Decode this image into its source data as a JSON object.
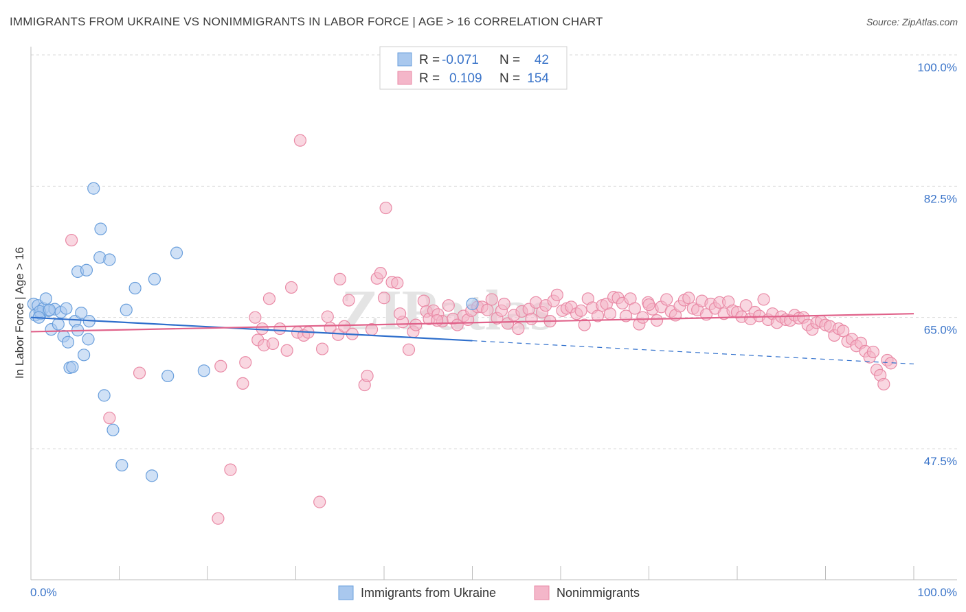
{
  "title": "IMMIGRANTS FROM UKRAINE VS NONIMMIGRANTS IN LABOR FORCE | AGE > 16 CORRELATION CHART",
  "source": "Source: ZipAtlas.com",
  "watermark": "ZIPatlas",
  "colors": {
    "blue_fill": "#a9c8ee",
    "blue_stroke": "#6a9fdc",
    "blue_line": "#2f6fcc",
    "pink_fill": "#f4b6c9",
    "pink_stroke": "#e98aa6",
    "pink_line": "#e0628a",
    "axis_text": "#3a74c9",
    "grid": "#d8d8d8"
  },
  "legend": {
    "r_label": "R =",
    "n_label": "N =",
    "rows": [
      {
        "r": "-0.071",
        "n": "42"
      },
      {
        "r": "0.109",
        "n": "154"
      }
    ]
  },
  "chart_data": {
    "type": "scatter",
    "title": "IMMIGRANTS FROM UKRAINE VS NONIMMIGRANTS IN LABOR FORCE | AGE > 16 CORRELATION CHART",
    "xlabel": "",
    "ylabel": "In Labor Force | Age > 16",
    "xlim": [
      0,
      100
    ],
    "ylim": [
      30,
      102
    ],
    "x_tick_labels": [
      "0.0%",
      "100.0%"
    ],
    "y_ticks": [
      47.5,
      65.0,
      82.5,
      100.0
    ],
    "y_tick_labels": [
      "47.5%",
      "65.0%",
      "82.5%",
      "100.0%"
    ],
    "grid": true,
    "legend_position": "top-center",
    "series": [
      {
        "name": "Immigrants from Ukraine",
        "r": -0.071,
        "n": 42,
        "trend": {
          "x0": 0,
          "y0": 65.0,
          "x1": 50,
          "y1": 61.9,
          "dash_x1": 100,
          "dash_y1": 58.8
        },
        "points": [
          [
            0.3,
            66.8
          ],
          [
            0.5,
            65.3
          ],
          [
            0.8,
            66.6
          ],
          [
            1.1,
            65.5
          ],
          [
            1.4,
            66.2
          ],
          [
            1.7,
            67.5
          ],
          [
            2.0,
            65.9
          ],
          [
            2.3,
            63.4
          ],
          [
            2.7,
            66.1
          ],
          [
            3.1,
            64.1
          ],
          [
            3.4,
            65.7
          ],
          [
            3.7,
            62.5
          ],
          [
            4.0,
            66.2
          ],
          [
            4.2,
            61.7
          ],
          [
            4.4,
            58.3
          ],
          [
            4.7,
            58.4
          ],
          [
            5.0,
            64.5
          ],
          [
            5.3,
            71.1
          ],
          [
            5.3,
            63.3
          ],
          [
            5.7,
            65.6
          ],
          [
            6.0,
            60.0
          ],
          [
            6.3,
            71.3
          ],
          [
            6.5,
            62.1
          ],
          [
            6.6,
            64.5
          ],
          [
            7.1,
            82.2
          ],
          [
            7.8,
            73.0
          ],
          [
            7.9,
            76.8
          ],
          [
            8.3,
            54.6
          ],
          [
            8.9,
            72.7
          ],
          [
            9.3,
            50.0
          ],
          [
            10.3,
            45.3
          ],
          [
            10.8,
            66.0
          ],
          [
            11.8,
            68.9
          ],
          [
            13.7,
            43.9
          ],
          [
            14.0,
            70.1
          ],
          [
            15.5,
            57.2
          ],
          [
            16.5,
            73.6
          ],
          [
            19.6,
            57.9
          ],
          [
            50.0,
            66.8
          ],
          [
            1.0,
            65.8
          ],
          [
            2.1,
            66.0
          ],
          [
            0.9,
            65.0
          ]
        ]
      },
      {
        "name": "Nonimmigrants",
        "r": 0.109,
        "n": 154,
        "trend": {
          "x0": 0,
          "y0": 63.1,
          "x1": 100,
          "y1": 65.5
        },
        "points": [
          [
            4.6,
            75.3
          ],
          [
            8.9,
            51.6
          ],
          [
            12.3,
            57.6
          ],
          [
            21.2,
            38.2
          ],
          [
            21.5,
            58.5
          ],
          [
            22.6,
            44.7
          ],
          [
            24.0,
            56.2
          ],
          [
            24.3,
            59.0
          ],
          [
            25.4,
            65.0
          ],
          [
            25.7,
            62.0
          ],
          [
            26.2,
            63.5
          ],
          [
            26.4,
            61.3
          ],
          [
            27.0,
            67.5
          ],
          [
            27.4,
            61.5
          ],
          [
            28.2,
            63.5
          ],
          [
            29.0,
            60.6
          ],
          [
            29.5,
            69.0
          ],
          [
            30.2,
            63.0
          ],
          [
            30.5,
            88.6
          ],
          [
            30.9,
            62.6
          ],
          [
            31.4,
            63.0
          ],
          [
            32.7,
            40.4
          ],
          [
            33.0,
            60.8
          ],
          [
            33.6,
            65.1
          ],
          [
            33.9,
            63.6
          ],
          [
            34.8,
            62.7
          ],
          [
            35.0,
            70.1
          ],
          [
            35.5,
            63.8
          ],
          [
            36.0,
            67.3
          ],
          [
            36.4,
            62.8
          ],
          [
            37.8,
            56.0
          ],
          [
            38.1,
            57.2
          ],
          [
            38.6,
            63.4
          ],
          [
            39.2,
            70.2
          ],
          [
            39.6,
            70.9
          ],
          [
            40.0,
            67.6
          ],
          [
            40.2,
            79.6
          ],
          [
            40.9,
            69.7
          ],
          [
            41.5,
            69.6
          ],
          [
            42.1,
            64.4
          ],
          [
            42.8,
            60.7
          ],
          [
            43.3,
            63.1
          ],
          [
            43.6,
            64.0
          ],
          [
            44.5,
            67.2
          ],
          [
            44.8,
            65.8
          ],
          [
            45.1,
            64.8
          ],
          [
            45.6,
            65.9
          ],
          [
            46.1,
            65.4
          ],
          [
            46.6,
            64.5
          ],
          [
            47.3,
            66.6
          ],
          [
            47.8,
            64.8
          ],
          [
            48.3,
            64.0
          ],
          [
            49.0,
            65.2
          ],
          [
            49.5,
            64.7
          ],
          [
            49.9,
            65.9
          ],
          [
            50.6,
            66.4
          ],
          [
            51.1,
            66.4
          ],
          [
            51.7,
            66.0
          ],
          [
            52.2,
            67.4
          ],
          [
            52.8,
            64.9
          ],
          [
            53.3,
            65.9
          ],
          [
            54.0,
            64.2
          ],
          [
            54.7,
            65.3
          ],
          [
            55.2,
            63.5
          ],
          [
            55.6,
            65.8
          ],
          [
            56.4,
            66.1
          ],
          [
            56.7,
            64.8
          ],
          [
            57.2,
            67.0
          ],
          [
            57.9,
            65.7
          ],
          [
            58.3,
            66.6
          ],
          [
            58.8,
            64.5
          ],
          [
            59.2,
            67.2
          ],
          [
            59.6,
            68.0
          ],
          [
            60.2,
            65.9
          ],
          [
            60.7,
            66.2
          ],
          [
            61.2,
            66.4
          ],
          [
            61.8,
            65.5
          ],
          [
            62.3,
            65.9
          ],
          [
            62.7,
            64.0
          ],
          [
            63.1,
            67.5
          ],
          [
            63.6,
            66.3
          ],
          [
            64.2,
            65.2
          ],
          [
            64.7,
            66.6
          ],
          [
            65.2,
            66.8
          ],
          [
            65.6,
            65.5
          ],
          [
            66.0,
            67.7
          ],
          [
            66.5,
            67.6
          ],
          [
            67.0,
            66.9
          ],
          [
            67.4,
            65.2
          ],
          [
            67.9,
            67.5
          ],
          [
            68.4,
            66.2
          ],
          [
            68.9,
            64.1
          ],
          [
            69.3,
            65.0
          ],
          [
            69.9,
            67.0
          ],
          [
            70.4,
            66.1
          ],
          [
            70.9,
            64.6
          ],
          [
            71.4,
            66.4
          ],
          [
            72.0,
            67.4
          ],
          [
            72.5,
            65.8
          ],
          [
            73.0,
            65.3
          ],
          [
            73.5,
            66.5
          ],
          [
            74.0,
            67.3
          ],
          [
            74.5,
            67.6
          ],
          [
            75.0,
            66.2
          ],
          [
            75.5,
            66.0
          ],
          [
            76.0,
            67.2
          ],
          [
            76.5,
            65.4
          ],
          [
            77.0,
            66.8
          ],
          [
            77.5,
            66.2
          ],
          [
            78.0,
            67.0
          ],
          [
            78.5,
            65.5
          ],
          [
            79.0,
            67.1
          ],
          [
            79.5,
            65.9
          ],
          [
            80.0,
            65.7
          ],
          [
            80.5,
            65.1
          ],
          [
            81.0,
            66.6
          ],
          [
            81.5,
            64.8
          ],
          [
            82.0,
            65.7
          ],
          [
            82.5,
            65.2
          ],
          [
            83.0,
            67.4
          ],
          [
            83.5,
            64.7
          ],
          [
            84.0,
            65.5
          ],
          [
            84.5,
            64.3
          ],
          [
            85.0,
            65.1
          ],
          [
            85.5,
            64.7
          ],
          [
            86.0,
            64.6
          ],
          [
            86.5,
            65.3
          ],
          [
            87.0,
            64.9
          ],
          [
            87.5,
            65.0
          ],
          [
            88.0,
            64.0
          ],
          [
            88.5,
            63.4
          ],
          [
            89.0,
            64.3
          ],
          [
            89.5,
            64.5
          ],
          [
            90.0,
            64.0
          ],
          [
            90.5,
            63.8
          ],
          [
            91.0,
            62.6
          ],
          [
            91.5,
            63.5
          ],
          [
            92.0,
            63.2
          ],
          [
            92.5,
            61.8
          ],
          [
            93.0,
            62.1
          ],
          [
            93.5,
            61.2
          ],
          [
            94.0,
            61.6
          ],
          [
            94.5,
            60.5
          ],
          [
            95.0,
            59.7
          ],
          [
            95.4,
            60.4
          ],
          [
            95.8,
            58.0
          ],
          [
            96.2,
            57.3
          ],
          [
            96.6,
            56.1
          ],
          [
            97.0,
            59.3
          ],
          [
            97.4,
            58.9
          ],
          [
            46.0,
            64.6
          ],
          [
            53.6,
            66.8
          ],
          [
            70.0,
            66.7
          ],
          [
            41.8,
            65.5
          ]
        ]
      }
    ]
  },
  "bottom_legend": [
    {
      "label": "Immigrants from Ukraine"
    },
    {
      "label": "Nonimmigrants"
    }
  ]
}
